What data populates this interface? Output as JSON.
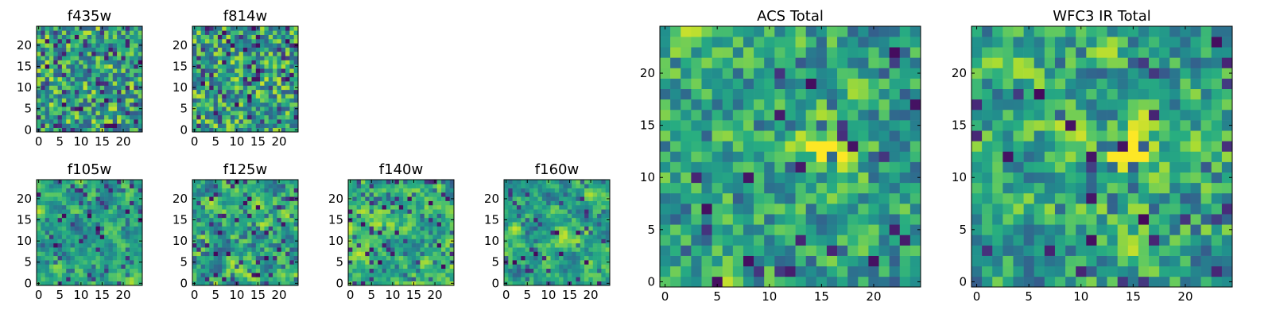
{
  "figure": {
    "colormap": "viridis",
    "colors": {
      "low": "#440154",
      "mid": "#21918c",
      "high": "#fde725",
      "axes": "#000000"
    }
  },
  "chart_data": [
    {
      "type": "heatmap",
      "title": "f435w",
      "size": 25,
      "xticks": [
        0,
        5,
        10,
        15,
        20
      ],
      "yticks": [
        0,
        5,
        10,
        15,
        20
      ],
      "xlim": [
        -0.5,
        24.5
      ],
      "ylim": [
        -0.5,
        24.5
      ],
      "texture": "noise",
      "seed": 11,
      "darkness": 0.1,
      "hot_center": null
    },
    {
      "type": "heatmap",
      "title": "f814w",
      "size": 25,
      "xticks": [
        0,
        5,
        10,
        15,
        20
      ],
      "yticks": [
        0,
        5,
        10,
        15,
        20
      ],
      "xlim": [
        -0.5,
        24.5
      ],
      "ylim": [
        -0.5,
        24.5
      ],
      "texture": "noise",
      "seed": 23,
      "darkness": 0.1,
      "hot_center": null
    },
    {
      "type": "heatmap",
      "title": "f105w",
      "size": 25,
      "xticks": [
        0,
        5,
        10,
        15,
        20
      ],
      "yticks": [
        0,
        5,
        10,
        15,
        20
      ],
      "xlim": [
        -0.5,
        24.5
      ],
      "ylim": [
        -0.5,
        24.5
      ],
      "texture": "smooth",
      "seed": 37,
      "darkness": 0.05,
      "hot_center": null
    },
    {
      "type": "heatmap",
      "title": "f125w",
      "size": 25,
      "xticks": [
        0,
        5,
        10,
        15,
        20
      ],
      "yticks": [
        0,
        5,
        10,
        15,
        20
      ],
      "xlim": [
        -0.5,
        24.5
      ],
      "ylim": [
        -0.5,
        24.5
      ],
      "texture": "smooth",
      "seed": 41,
      "darkness": 0.08,
      "hot_center": null
    },
    {
      "type": "heatmap",
      "title": "f140w",
      "size": 25,
      "xticks": [
        0,
        5,
        10,
        15,
        20
      ],
      "yticks": [
        0,
        5,
        10,
        15,
        20
      ],
      "xlim": [
        -0.5,
        24.5
      ],
      "ylim": [
        -0.5,
        24.5
      ],
      "texture": "smooth",
      "seed": 53,
      "darkness": 0.06,
      "hot_center": null
    },
    {
      "type": "heatmap",
      "title": "f160w",
      "size": 25,
      "xticks": [
        0,
        5,
        10,
        15,
        20
      ],
      "yticks": [
        0,
        5,
        10,
        15,
        20
      ],
      "xlim": [
        -0.5,
        24.5
      ],
      "ylim": [
        -0.5,
        24.5
      ],
      "texture": "smooth",
      "seed": 67,
      "darkness": 0.05,
      "hot_center": [
        13,
        10
      ]
    },
    {
      "type": "heatmap",
      "title": "ACS Total",
      "size": 25,
      "xticks": [
        0,
        5,
        10,
        15,
        20
      ],
      "yticks": [
        0,
        5,
        10,
        15,
        20
      ],
      "xlim": [
        -0.5,
        24.5
      ],
      "ylim": [
        -0.5,
        24.5
      ],
      "texture": "blocky",
      "seed": 79,
      "darkness": 0.05,
      "hot_center": [
        17,
        13
      ]
    },
    {
      "type": "heatmap",
      "title": "WFC3 IR Total",
      "size": 25,
      "xticks": [
        0,
        5,
        10,
        15,
        20
      ],
      "yticks": [
        0,
        5,
        10,
        15,
        20
      ],
      "xlim": [
        -0.5,
        24.5
      ],
      "ylim": [
        -0.5,
        24.5
      ],
      "texture": "blocky",
      "seed": 97,
      "darkness": 0.04,
      "hot_center": [
        14,
        13
      ]
    }
  ]
}
